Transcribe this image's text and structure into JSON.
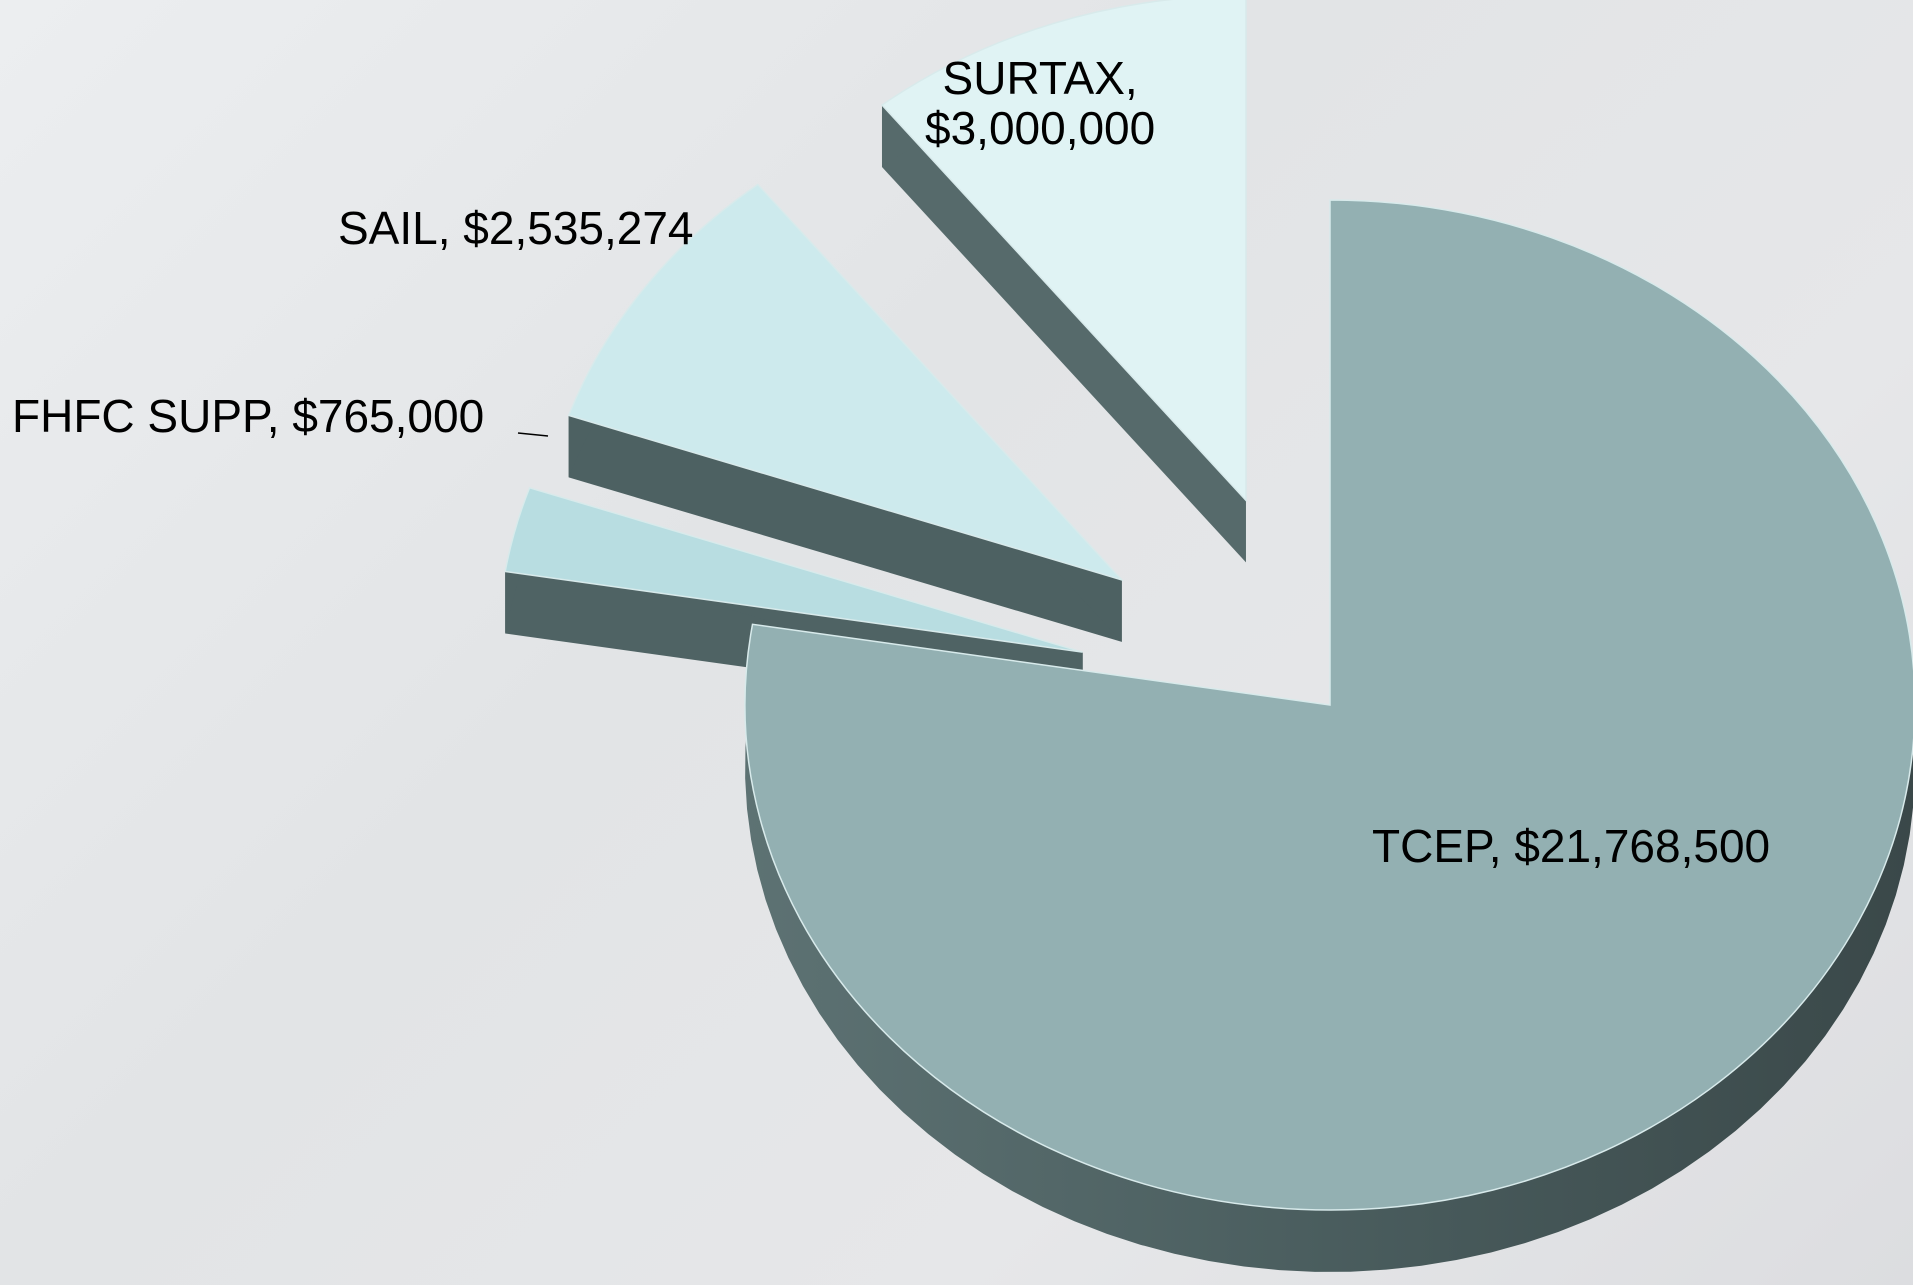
{
  "chart_data": {
    "type": "pie",
    "labels": [
      "TCEP, $21,768,500",
      "FHFC SUPP, $765,000",
      "SAIL, $2,535,274",
      "SURTAX,\n$3,000,000"
    ],
    "values": [
      21768500,
      765000,
      2535274,
      3000000
    ],
    "colors": [
      "#93b0b2",
      "#b8dde1",
      "#cdeaed",
      "#e0f3f4"
    ]
  }
}
